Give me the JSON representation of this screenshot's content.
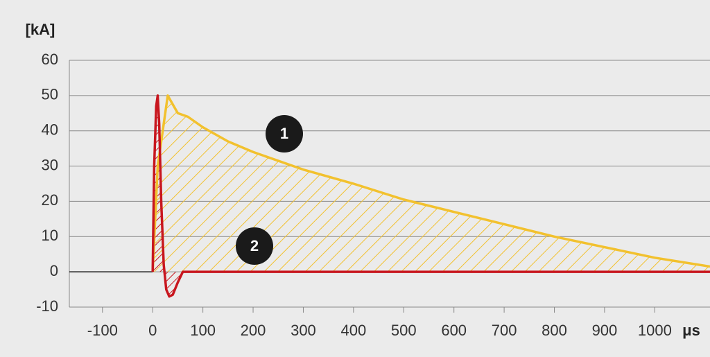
{
  "chart_data": {
    "type": "line",
    "y_unit": "[kA]",
    "x_unit": "μs",
    "xlim": [
      -166,
      1110
    ],
    "ylim": [
      -10,
      60
    ],
    "xticks": [
      -100,
      0,
      100,
      200,
      300,
      400,
      500,
      600,
      700,
      800,
      900,
      1000
    ],
    "yticks": [
      -10,
      0,
      10,
      20,
      30,
      40,
      50,
      60
    ],
    "grid": true,
    "series": [
      {
        "name": "1",
        "color": "#f2c12e",
        "x": [
          0,
          10,
          30,
          50,
          70,
          100,
          150,
          200,
          300,
          400,
          500,
          600,
          700,
          800,
          900,
          1000,
          1110
        ],
        "values": [
          0,
          30,
          50,
          45,
          44,
          41,
          37,
          34,
          29,
          25,
          20.5,
          17,
          13.5,
          10,
          7,
          4,
          1.5
        ]
      },
      {
        "name": "2",
        "color": "#c8161e",
        "x": [
          0,
          3,
          7,
          10,
          13,
          17,
          22,
          27,
          33,
          40,
          50,
          60,
          1110
        ],
        "values": [
          0,
          30,
          47,
          50,
          42,
          20,
          2,
          -5,
          -7,
          -6.5,
          -3,
          0,
          0
        ]
      }
    ]
  }
}
